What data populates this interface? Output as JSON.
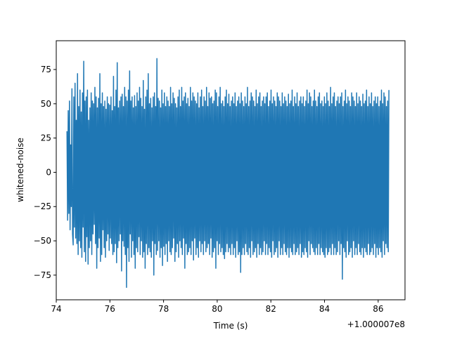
{
  "chart_data": {
    "type": "line",
    "title": "",
    "xlabel": "Time (s)",
    "ylabel": "whitened-noise",
    "x_offset_label": "+1.000007e8",
    "xlim": [
      74.0,
      87.0
    ],
    "ylim": [
      -93,
      96
    ],
    "x_ticks": [
      74,
      76,
      78,
      80,
      82,
      84,
      86
    ],
    "y_ticks": [
      -75,
      -50,
      -25,
      0,
      25,
      50,
      75
    ],
    "grid": false,
    "legend": "none",
    "series": [
      {
        "color": "#1f77b4",
        "x_range": [
          74.4,
          86.4
        ],
        "values": [
          30,
          -35,
          45,
          -30,
          52,
          -42,
          20,
          -25,
          61,
          -45,
          -53,
          55,
          -40,
          65,
          -48,
          38,
          -52,
          72,
          -60,
          48,
          -50,
          60,
          -55,
          44,
          -62,
          58,
          -40,
          81,
          -58,
          52,
          -65,
          55,
          -47,
          60,
          -67,
          38,
          -55,
          47,
          -50,
          58,
          -60,
          52,
          -45,
          50,
          -38,
          62,
          -52,
          55,
          -70,
          47,
          -55,
          54,
          -48,
          72,
          -65,
          50,
          -60,
          58,
          -42,
          48,
          -55,
          52,
          -62,
          46,
          -50,
          55,
          -45,
          50,
          -57,
          49,
          -48,
          55,
          -52,
          45,
          -60,
          70,
          -58,
          48,
          -52,
          60,
          -66,
          80,
          -55,
          47,
          -50,
          52,
          -45,
          55,
          -72,
          57,
          -50,
          48,
          -54,
          62,
          -60,
          55,
          -84,
          52,
          -55,
          60,
          -65,
          74,
          -45,
          52,
          -62,
          55,
          -50,
          47,
          -60,
          56,
          -70,
          48,
          -55,
          58,
          -58,
          52,
          -47,
          62,
          -60,
          54,
          -50,
          48,
          -62,
          67,
          -58,
          46,
          -70,
          55,
          -52,
          60,
          -60,
          72,
          -55,
          50,
          -58,
          54,
          -62,
          47,
          -50,
          55,
          -75,
          58,
          -52,
          48,
          -60,
          83,
          -57,
          54,
          -50,
          52,
          -62,
          47,
          -55,
          60,
          -68,
          50,
          -54,
          58,
          -60,
          48,
          -52,
          55,
          -65,
          52,
          -50,
          48,
          -58,
          62,
          -60,
          50,
          -55,
          58,
          -48,
          54,
          -65,
          50,
          -58,
          47,
          -52,
          55,
          -62,
          60,
          -50,
          48,
          -55,
          62,
          -60,
          52,
          -48,
          55,
          -70,
          58,
          -52,
          50,
          -60,
          54,
          -58,
          48,
          -55,
          62,
          -60,
          52,
          -50,
          58,
          -64,
          55,
          -48,
          52,
          -60,
          50,
          -55,
          58,
          -62,
          47,
          -50,
          55,
          -58,
          60,
          -52,
          48,
          -60,
          55,
          -50,
          52,
          -58,
          62,
          -55,
          48,
          -52,
          58,
          -60,
          54,
          -48,
          55,
          -62,
          50,
          -58,
          52,
          -55,
          60,
          -70,
          58,
          -50,
          48,
          -60,
          55,
          -52,
          62,
          -58,
          50,
          -55,
          52,
          -60,
          48,
          -63,
          55,
          -58,
          60,
          -52,
          50,
          -58,
          57,
          -55,
          48,
          -60,
          52,
          -52,
          55,
          -60,
          50,
          -55,
          58,
          -62,
          48,
          -50,
          52,
          -60,
          55,
          -58,
          50,
          -73,
          58,
          -60,
          52,
          -55,
          48,
          -60,
          55,
          -52,
          50,
          -58,
          62,
          -60,
          48,
          -55,
          52,
          -62,
          58,
          -50,
          55,
          -60,
          52,
          -58,
          48,
          -55,
          60,
          -62,
          50,
          -52,
          55,
          -60,
          58,
          -55,
          48,
          -60,
          52,
          -58,
          55,
          -50,
          50,
          -60,
          55,
          -52,
          58,
          -60,
          48,
          -55,
          52,
          -58,
          60,
          -62,
          50,
          -50,
          55,
          -60,
          52,
          -58,
          48,
          -55,
          58,
          -62,
          55,
          -50,
          52,
          -60,
          48,
          -55,
          58,
          -60,
          50,
          -52,
          55,
          -58,
          52,
          -60,
          48,
          -55,
          57,
          -62,
          50,
          -55,
          52,
          -58,
          60,
          -60,
          48,
          -52,
          55,
          -60,
          50,
          -58,
          58,
          -55,
          48,
          -60,
          52,
          -52,
          55,
          -62,
          50,
          -58,
          55,
          -60,
          48,
          -55,
          52,
          -58,
          60,
          -62,
          50,
          -50,
          58,
          -60,
          55,
          -52,
          48,
          -55,
          52,
          -58,
          60,
          -60,
          52,
          -55,
          48,
          -60,
          55,
          -52,
          58,
          -60,
          50,
          -55,
          52,
          -58,
          48,
          -60,
          55,
          -62,
          50,
          -55,
          58,
          -60,
          52,
          -58,
          48,
          -55,
          62,
          -60,
          50,
          -52,
          55,
          -60,
          58,
          -55,
          48,
          -60,
          52,
          -58,
          55,
          -50,
          50,
          -60,
          55,
          -52,
          58,
          -78,
          48,
          -55,
          52,
          -58,
          60,
          -62,
          50,
          -50,
          55,
          -60,
          52,
          -58,
          48,
          -55,
          58,
          -62,
          55,
          -50,
          52,
          -60,
          48,
          -55,
          58,
          -60,
          50,
          -52,
          55,
          -58,
          52,
          -60,
          48,
          -55,
          57,
          -62,
          50,
          -55,
          52,
          -58,
          60,
          -60,
          48,
          -52,
          55,
          -60,
          50,
          -58,
          58,
          -55,
          48,
          -60,
          52,
          -52,
          55,
          -62,
          50,
          -55,
          55,
          -60,
          48,
          -55,
          52,
          -58,
          60,
          -62,
          50,
          -50,
          58,
          -60,
          55,
          -52,
          48,
          -55,
          52,
          -58,
          60
        ]
      }
    ]
  }
}
